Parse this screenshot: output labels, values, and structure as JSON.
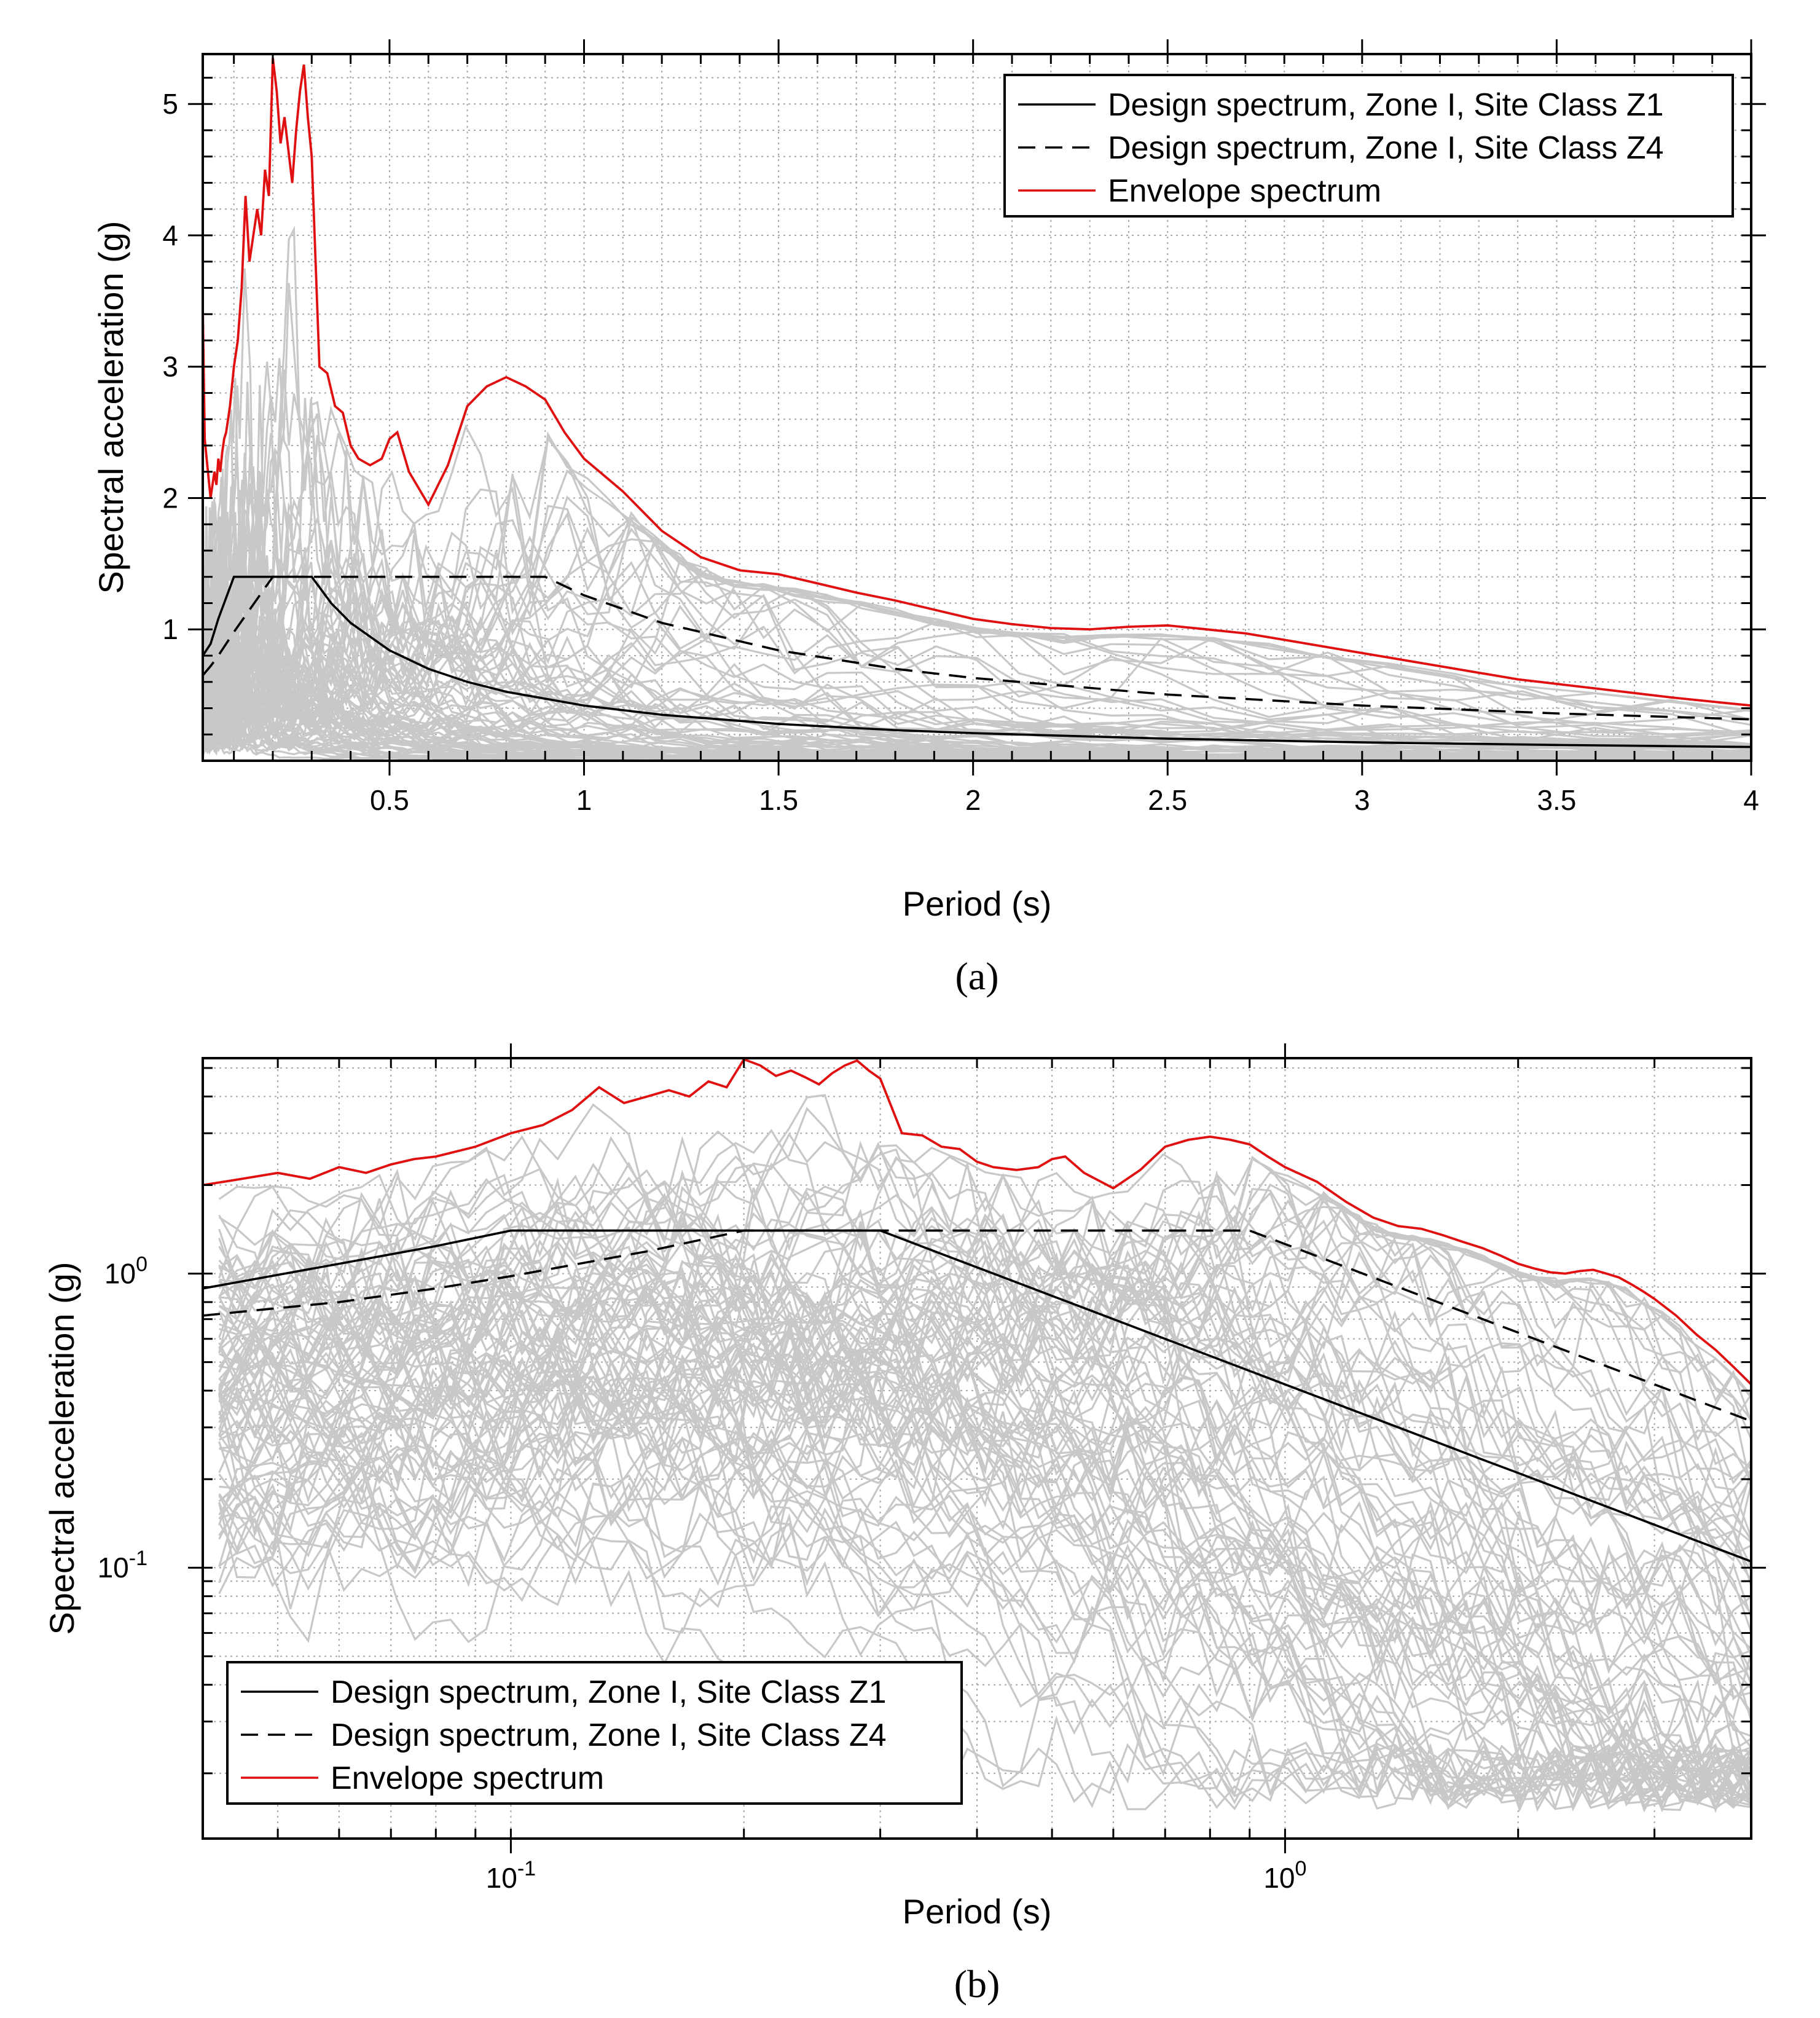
{
  "colors": {
    "records": "#c8c8c8",
    "envelope": "#e01010",
    "design": "#000000",
    "grid": "#a8a8a8"
  },
  "chart_data": [
    {
      "panel": "a",
      "type": "line",
      "xscale": "linear",
      "yscale": "linear",
      "xlim": [
        0.02,
        4.0
      ],
      "ylim": [
        0.0,
        5.38
      ],
      "xlabel": "Period (s)",
      "ylabel": "Spectral acceleration (g)",
      "xticks": [
        {
          "v": 0.5,
          "label": "0.5"
        },
        {
          "v": 1,
          "label": "1"
        },
        {
          "v": 1.5,
          "label": "1.5"
        },
        {
          "v": 2,
          "label": "2"
        },
        {
          "v": 2.5,
          "label": "2.5"
        },
        {
          "v": 3,
          "label": "3"
        },
        {
          "v": 3.5,
          "label": "3.5"
        },
        {
          "v": 4,
          "label": "4"
        }
      ],
      "yticks": [
        {
          "v": 1,
          "label": "1"
        },
        {
          "v": 2,
          "label": "2"
        },
        {
          "v": 3,
          "label": "3"
        },
        {
          "v": 4,
          "label": "4"
        },
        {
          "v": 5,
          "label": "5"
        }
      ],
      "grid": true,
      "legend_position": "top-right",
      "legend": [
        {
          "label": "Design spectrum, Zone I, Site Class Z1",
          "style": "solid"
        },
        {
          "label": "Design spectrum, Zone I, Site Class Z4",
          "style": "dashed"
        },
        {
          "label": "Envelope spectrum",
          "style": "red"
        }
      ],
      "panel_label": "(a)"
    },
    {
      "panel": "b",
      "type": "line",
      "xscale": "log",
      "yscale": "log",
      "xlim": [
        0.04,
        4.0
      ],
      "ylim": [
        0.012,
        5.4
      ],
      "xlabel": "Period (s)",
      "ylabel": "Spectral acceleration (g)",
      "xticks": [
        {
          "v": 0.1,
          "label": "10",
          "exp": "-1"
        },
        {
          "v": 1,
          "label": "10",
          "exp": "0"
        }
      ],
      "yticks": [
        {
          "v": 0.1,
          "label": "10",
          "exp": "-1"
        },
        {
          "v": 1,
          "label": "10",
          "exp": "0"
        }
      ],
      "grid": true,
      "legend_position": "bottom-left",
      "legend": [
        {
          "label": "Design spectrum, Zone I, Site Class Z1",
          "style": "solid"
        },
        {
          "label": "Design spectrum, Zone I, Site Class Z4",
          "style": "dashed"
        },
        {
          "label": "Envelope spectrum",
          "style": "red"
        }
      ],
      "panel_label": "(b)"
    }
  ],
  "series_data": {
    "design_z1": {
      "x": [
        0.02,
        0.04,
        0.06,
        0.08,
        0.1,
        0.2,
        0.3,
        0.35,
        0.4,
        0.5,
        0.6,
        0.7,
        0.8,
        1.0,
        1.2,
        1.5,
        1.8,
        2.0,
        2.5,
        3.0,
        3.5,
        4.0
      ],
      "y": [
        0.8,
        0.89,
        1.08,
        1.24,
        1.4,
        1.4,
        1.4,
        1.2,
        1.05,
        0.84,
        0.7,
        0.6,
        0.525,
        0.42,
        0.35,
        0.28,
        0.233,
        0.21,
        0.168,
        0.14,
        0.12,
        0.105
      ]
    },
    "design_z4": {
      "x": [
        0.02,
        0.04,
        0.06,
        0.08,
        0.1,
        0.15,
        0.2,
        0.3,
        0.5,
        0.7,
        0.9,
        1.0,
        1.2,
        1.5,
        1.8,
        2.0,
        2.5,
        3.0,
        3.5,
        4.0
      ],
      "y": [
        0.65,
        0.72,
        0.8,
        0.89,
        0.98,
        1.19,
        1.4,
        1.4,
        1.4,
        1.4,
        1.4,
        1.26,
        1.05,
        0.84,
        0.7,
        0.63,
        0.504,
        0.42,
        0.36,
        0.315
      ]
    },
    "envelope": {
      "x": [
        0.02,
        0.025,
        0.03,
        0.035,
        0.04,
        0.045,
        0.05,
        0.055,
        0.06,
        0.065,
        0.07,
        0.075,
        0.08,
        0.085,
        0.09,
        0.095,
        0.1,
        0.11,
        0.12,
        0.13,
        0.14,
        0.15,
        0.16,
        0.17,
        0.18,
        0.19,
        0.2,
        0.21,
        0.22,
        0.23,
        0.24,
        0.25,
        0.26,
        0.27,
        0.28,
        0.29,
        0.3,
        0.32,
        0.34,
        0.36,
        0.38,
        0.4,
        0.42,
        0.45,
        0.48,
        0.5,
        0.52,
        0.55,
        0.6,
        0.65,
        0.7,
        0.75,
        0.8,
        0.85,
        0.9,
        0.95,
        1.0,
        1.1,
        1.2,
        1.3,
        1.4,
        1.5,
        1.6,
        1.7,
        1.8,
        1.9,
        2.0,
        2.1,
        2.2,
        2.3,
        2.4,
        2.5,
        2.6,
        2.7,
        2.8,
        2.9,
        3.0,
        3.2,
        3.4,
        3.6,
        3.8,
        4.0
      ],
      "y": [
        3.45,
        2.45,
        2.3,
        2.15,
        2.0,
        2.1,
        2.2,
        2.1,
        2.3,
        2.2,
        2.35,
        2.45,
        2.5,
        2.6,
        2.7,
        2.85,
        3.0,
        3.2,
        3.6,
        4.3,
        3.8,
        4.0,
        4.2,
        4.0,
        4.5,
        4.3,
        5.35,
        5.1,
        4.7,
        4.9,
        4.65,
        4.4,
        4.8,
        5.1,
        5.3,
        4.9,
        4.6,
        3.0,
        2.95,
        2.7,
        2.65,
        2.4,
        2.3,
        2.25,
        2.3,
        2.45,
        2.5,
        2.2,
        1.95,
        2.25,
        2.7,
        2.85,
        2.92,
        2.85,
        2.75,
        2.5,
        2.3,
        2.05,
        1.75,
        1.55,
        1.45,
        1.42,
        1.35,
        1.28,
        1.22,
        1.15,
        1.08,
        1.04,
        1.01,
        1.0,
        1.02,
        1.03,
        1.0,
        0.97,
        0.92,
        0.87,
        0.82,
        0.72,
        0.62,
        0.55,
        0.48,
        0.42
      ]
    }
  }
}
